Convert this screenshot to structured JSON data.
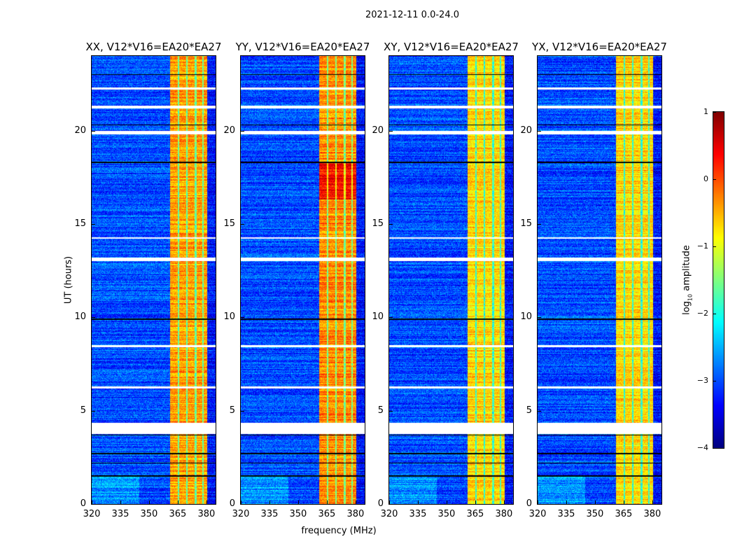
{
  "chart_data": {
    "type": "heatmap",
    "title": "2021-12-11 0.0-24.0",
    "xlabel": "frequency (MHz)",
    "ylabel": "UT (hours)",
    "xlim": [
      320,
      384.8
    ],
    "ylim": [
      0,
      24
    ],
    "xticks": [
      320,
      335,
      350,
      365,
      380
    ],
    "yticks": [
      0,
      5,
      10,
      15,
      20
    ],
    "panels": [
      {
        "title": "XX, V12*V16=EA20*EA27",
        "band_level_log10": -0.4
      },
      {
        "title": "YY, V12*V16=EA20*EA27",
        "band_level_log10": -0.3
      },
      {
        "title": "XY, V12*V16=EA20*EA27",
        "band_level_log10": -0.7
      },
      {
        "title": "YX, V12*V16=EA20*EA27",
        "band_level_log10": -0.7
      }
    ],
    "rfi_band_mhz": [
      361,
      380.5
    ],
    "background_level_log10": -3.0,
    "flagged_hours": [
      [
        3.75,
        4.35
      ],
      [
        13.0,
        13.2
      ],
      [
        19.8,
        20.0
      ],
      [
        21.2,
        21.35
      ],
      [
        22.2,
        22.3
      ],
      [
        6.2,
        6.3
      ],
      [
        8.4,
        8.5
      ],
      [
        14.2,
        14.3
      ]
    ],
    "black_line_hours": [
      1.5,
      2.2,
      2.7,
      3.7,
      9.9,
      18.3,
      20.3,
      23.0
    ],
    "colorbar": {
      "label_prefix": "log",
      "label_sub": "10",
      "label_suffix": " amplitude",
      "range": [
        -4,
        1
      ],
      "ticks": [
        1,
        0,
        -1,
        -2,
        -3,
        -4
      ],
      "tick_labels": [
        "1",
        "0",
        "−1",
        "−2",
        "−3",
        "−4"
      ],
      "colormap": "jet"
    }
  }
}
